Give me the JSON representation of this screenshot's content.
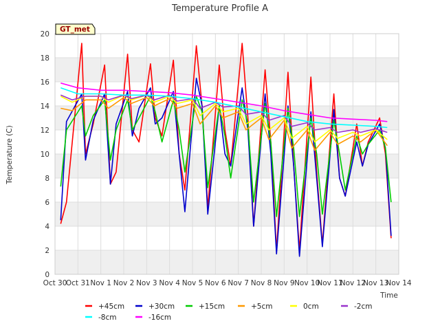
{
  "chart_data": {
    "type": "line",
    "title": "Temperature Profile A",
    "xlabel": "Time",
    "ylabel": "Temperature (C)",
    "ylim": [
      0,
      20
    ],
    "yticks": [
      0,
      2,
      4,
      6,
      8,
      10,
      12,
      14,
      16,
      18,
      20
    ],
    "xlim": [
      "Oct 30",
      "Nov 14"
    ],
    "xticks": [
      "Oct 30",
      "Oct 31",
      "Nov 1",
      "Nov 2",
      "Nov 3",
      "Nov 4",
      "Nov 5",
      "Nov 6",
      "Nov 7",
      "Nov 8",
      "Nov 9",
      "Nov 10",
      "Nov 11",
      "Nov 12",
      "Nov 13",
      "Nov 14"
    ],
    "grid": true,
    "background_bands": "alternating light gray horizontal bands",
    "legend_placement": "bottom-center",
    "badge": {
      "text": "GT_met",
      "bg": "#ffffcc",
      "border": "#000000"
    },
    "series": [
      {
        "name": "+45cm",
        "color": "#ff0000",
        "x": [
          "Oct 30 06:00",
          "Oct 30 12:00",
          "Oct 31 04:00",
          "Oct 31 08:00",
          "Oct 31 16:00",
          "Nov 1 04:00",
          "Nov 1 10:00",
          "Nov 1 16:00",
          "Nov 2 04:00",
          "Nov 2 09:00",
          "Nov 2 16:00",
          "Nov 3 04:00",
          "Nov 3 09:00",
          "Nov 3 16:00",
          "Nov 4 04:00",
          "Nov 4 10:00",
          "Nov 4 16:00",
          "Nov 5 04:00",
          "Nov 5 10:00",
          "Nov 5 16:00",
          "Nov 6 04:00",
          "Nov 6 10:00",
          "Nov 6 16:00",
          "Nov 7 04:00",
          "Nov 7 10:00",
          "Nov 7 16:00",
          "Nov 8 04:00",
          "Nov 8 10:00",
          "Nov 8 16:00",
          "Nov 9 04:00",
          "Nov 9 10:00",
          "Nov 9 16:00",
          "Nov 10 04:00",
          "Nov 10 10:00",
          "Nov 10 16:00",
          "Nov 11 04:00",
          "Nov 11 10:00",
          "Nov 11 16:00",
          "Nov 12 04:00",
          "Nov 12 10:00",
          "Nov 12 16:00",
          "Nov 13 04:00",
          "Nov 13 10:00",
          "Nov 13 16:00"
        ],
        "y": [
          4.2,
          6.0,
          19.2,
          10.0,
          12.5,
          17.4,
          7.5,
          8.5,
          18.3,
          12.0,
          11.0,
          17.5,
          13.0,
          11.5,
          17.8,
          10.0,
          7.0,
          19.0,
          14.0,
          5.5,
          17.4,
          12.0,
          9.0,
          19.2,
          13.0,
          4.0,
          17.0,
          11.0,
          2.0,
          16.8,
          9.0,
          2.0,
          16.4,
          8.5,
          2.5,
          15.0,
          8.0,
          6.5,
          12.5,
          9.0,
          11.0,
          13.0,
          10.0,
          3.0
        ]
      },
      {
        "name": "+30cm",
        "color": "#0000cc",
        "x": [
          "Oct 30 06:00",
          "Oct 30 12:00",
          "Oct 31 04:00",
          "Oct 31 08:00",
          "Oct 31 16:00",
          "Nov 1 04:00",
          "Nov 1 10:00",
          "Nov 1 16:00",
          "Nov 2 04:00",
          "Nov 2 09:00",
          "Nov 2 16:00",
          "Nov 3 04:00",
          "Nov 3 09:00",
          "Nov 3 16:00",
          "Nov 4 04:00",
          "Nov 4 10:00",
          "Nov 4 16:00",
          "Nov 5 04:00",
          "Nov 5 10:00",
          "Nov 5 16:00",
          "Nov 6 04:00",
          "Nov 6 10:00",
          "Nov 6 16:00",
          "Nov 7 04:00",
          "Nov 7 10:00",
          "Nov 7 16:00",
          "Nov 8 04:00",
          "Nov 8 10:00",
          "Nov 8 16:00",
          "Nov 9 04:00",
          "Nov 9 10:00",
          "Nov 9 16:00",
          "Nov 10 04:00",
          "Nov 10 10:00",
          "Nov 10 16:00",
          "Nov 11 04:00",
          "Nov 11 10:00",
          "Nov 11 16:00",
          "Nov 12 04:00",
          "Nov 12 10:00",
          "Nov 12 16:00",
          "Nov 13 04:00",
          "Nov 13 10:00",
          "Nov 13 16:00"
        ],
        "y": [
          4.5,
          12.7,
          15.0,
          9.5,
          12.8,
          15.0,
          7.5,
          12.5,
          15.2,
          11.5,
          13.8,
          15.5,
          12.5,
          13.0,
          15.2,
          10.0,
          5.2,
          16.3,
          14.0,
          5.0,
          14.0,
          10.0,
          9.0,
          15.5,
          12.0,
          4.0,
          15.0,
          10.0,
          1.7,
          14.0,
          9.0,
          1.5,
          13.5,
          8.0,
          2.3,
          13.7,
          8.0,
          6.5,
          11.0,
          9.0,
          10.8,
          12.5,
          10.5,
          3.2
        ]
      },
      {
        "name": "+15cm",
        "color": "#00cc00",
        "x": [
          "Oct 30 06:00",
          "Oct 30 12:00",
          "Oct 31 04:00",
          "Oct 31 08:00",
          "Oct 31 16:00",
          "Nov 1 04:00",
          "Nov 1 10:00",
          "Nov 1 16:00",
          "Nov 2 04:00",
          "Nov 2 09:00",
          "Nov 2 16:00",
          "Nov 3 04:00",
          "Nov 3 09:00",
          "Nov 3 16:00",
          "Nov 4 04:00",
          "Nov 4 10:00",
          "Nov 4 16:00",
          "Nov 5 04:00",
          "Nov 5 10:00",
          "Nov 5 16:00",
          "Nov 6 04:00",
          "Nov 6 10:00",
          "Nov 6 16:00",
          "Nov 7 04:00",
          "Nov 7 10:00",
          "Nov 7 16:00",
          "Nov 8 04:00",
          "Nov 8 10:00",
          "Nov 8 16:00",
          "Nov 9 04:00",
          "Nov 9 10:00",
          "Nov 9 16:00",
          "Nov 10 04:00",
          "Nov 10 10:00",
          "Nov 10 16:00",
          "Nov 11 04:00",
          "Nov 11 10:00",
          "Nov 11 16:00",
          "Nov 12 04:00",
          "Nov 12 10:00",
          "Nov 12 16:00",
          "Nov 13 04:00",
          "Nov 13 10:00",
          "Nov 13 16:00"
        ],
        "y": [
          7.3,
          12.0,
          14.0,
          11.5,
          13.2,
          14.5,
          9.5,
          12.0,
          14.5,
          12.0,
          13.0,
          14.8,
          13.5,
          11.0,
          14.5,
          12.0,
          8.5,
          14.8,
          13.5,
          7.2,
          14.0,
          11.5,
          8.0,
          14.5,
          12.5,
          6.0,
          14.2,
          11.0,
          4.8,
          13.8,
          10.5,
          4.8,
          13.0,
          10.0,
          5.0,
          12.8,
          10.0,
          7.0,
          11.5,
          10.0,
          10.8,
          12.0,
          10.5,
          6.0
        ]
      },
      {
        "name": "+5cm",
        "color": "#ff9900",
        "x": [
          "Oct 30 06:00",
          "Oct 30 18:00",
          "Oct 31 08:00",
          "Nov 1 00:00",
          "Nov 1 08:00",
          "Nov 2 00:00",
          "Nov 2 08:00",
          "Nov 3 00:00",
          "Nov 3 08:00",
          "Nov 4 00:00",
          "Nov 4 08:00",
          "Nov 5 00:00",
          "Nov 5 08:00",
          "Nov 6 00:00",
          "Nov 6 08:00",
          "Nov 7 00:00",
          "Nov 7 08:00",
          "Nov 8 00:00",
          "Nov 8 08:00",
          "Nov 9 00:00",
          "Nov 9 08:00",
          "Nov 10 00:00",
          "Nov 10 08:00",
          "Nov 11 00:00",
          "Nov 11 08:00",
          "Nov 12 00:00",
          "Nov 12 08:00",
          "Nov 13 00:00",
          "Nov 13 12:00"
        ],
        "y": [
          13.8,
          13.6,
          14.5,
          14.5,
          13.8,
          14.7,
          14.2,
          14.7,
          14.0,
          14.6,
          13.8,
          14.2,
          12.5,
          14.0,
          13.0,
          13.5,
          12.0,
          13.0,
          11.2,
          12.8,
          10.5,
          12.0,
          10.3,
          11.8,
          10.8,
          11.5,
          11.0,
          12.0,
          10.7
        ]
      },
      {
        "name": "0cm",
        "color": "#ffff00",
        "x": [
          "Oct 30 06:00",
          "Oct 30 18:00",
          "Oct 31 08:00",
          "Nov 1 00:00",
          "Nov 1 08:00",
          "Nov 2 00:00",
          "Nov 2 08:00",
          "Nov 3 00:00",
          "Nov 3 08:00",
          "Nov 4 00:00",
          "Nov 4 08:00",
          "Nov 5 00:00",
          "Nov 5 08:00",
          "Nov 6 00:00",
          "Nov 6 08:00",
          "Nov 7 00:00",
          "Nov 7 08:00",
          "Nov 8 00:00",
          "Nov 8 08:00",
          "Nov 9 00:00",
          "Nov 9 08:00",
          "Nov 10 00:00",
          "Nov 10 08:00",
          "Nov 11 00:00",
          "Nov 11 08:00",
          "Nov 12 00:00",
          "Nov 12 08:00",
          "Nov 13 00:00",
          "Nov 13 12:00"
        ],
        "y": [
          14.8,
          14.3,
          14.8,
          14.8,
          14.3,
          14.9,
          14.5,
          14.9,
          14.3,
          14.8,
          14.2,
          14.5,
          13.2,
          14.2,
          13.5,
          13.8,
          12.5,
          13.2,
          12.0,
          13.0,
          11.3,
          12.3,
          11.0,
          12.0,
          11.3,
          11.8,
          11.5,
          12.0,
          11.2
        ]
      },
      {
        "name": "-2cm",
        "color": "#9933cc",
        "x": [
          "Oct 30 06:00",
          "Oct 30 18:00",
          "Oct 31 08:00",
          "Nov 1 00:00",
          "Nov 1 08:00",
          "Nov 2 00:00",
          "Nov 2 08:00",
          "Nov 3 00:00",
          "Nov 3 08:00",
          "Nov 4 00:00",
          "Nov 4 08:00",
          "Nov 5 00:00",
          "Nov 5 08:00",
          "Nov 6 00:00",
          "Nov 6 08:00",
          "Nov 7 00:00",
          "Nov 7 08:00",
          "Nov 8 00:00",
          "Nov 8 08:00",
          "Nov 9 00:00",
          "Nov 9 08:00",
          "Nov 10 00:00",
          "Nov 10 08:00",
          "Nov 11 00:00",
          "Nov 11 08:00",
          "Nov 12 00:00",
          "Nov 12 08:00",
          "Nov 13 00:00",
          "Nov 13 12:00"
        ],
        "y": [
          14.9,
          14.5,
          14.8,
          14.8,
          14.5,
          14.9,
          14.6,
          14.9,
          14.5,
          14.9,
          14.4,
          14.6,
          13.8,
          14.3,
          13.9,
          14.0,
          13.3,
          13.5,
          12.8,
          13.2,
          12.3,
          12.6,
          12.0,
          12.2,
          11.8,
          12.0,
          11.8,
          12.1,
          11.8
        ]
      },
      {
        "name": "-8cm",
        "color": "#00ffff",
        "x": [
          "Oct 30 06:00",
          "Oct 31 00:00",
          "Nov 1 00:00",
          "Nov 2 00:00",
          "Nov 3 00:00",
          "Nov 4 00:00",
          "Nov 5 00:00",
          "Nov 6 00:00",
          "Nov 7 00:00",
          "Nov 8 00:00",
          "Nov 9 00:00",
          "Nov 10 00:00",
          "Nov 11 00:00",
          "Nov 12 00:00",
          "Nov 13 00:00",
          "Nov 13 12:00"
        ],
        "y": [
          15.5,
          15.0,
          15.0,
          14.9,
          14.9,
          14.8,
          14.6,
          14.3,
          13.9,
          13.5,
          13.1,
          12.7,
          12.5,
          12.4,
          12.3,
          12.2
        ]
      },
      {
        "name": "-16cm",
        "color": "#ff00ff",
        "x": [
          "Oct 30 06:00",
          "Oct 31 00:00",
          "Nov 1 00:00",
          "Nov 2 00:00",
          "Nov 3 00:00",
          "Nov 4 00:00",
          "Nov 5 00:00",
          "Nov 6 00:00",
          "Nov 7 00:00",
          "Nov 8 00:00",
          "Nov 9 00:00",
          "Nov 10 00:00",
          "Nov 11 00:00",
          "Nov 12 00:00",
          "Nov 13 00:00",
          "Nov 13 12:00"
        ],
        "y": [
          15.9,
          15.5,
          15.3,
          15.3,
          15.2,
          15.1,
          14.9,
          14.6,
          14.3,
          14.0,
          13.6,
          13.3,
          13.0,
          12.9,
          12.8,
          12.7
        ]
      }
    ]
  }
}
